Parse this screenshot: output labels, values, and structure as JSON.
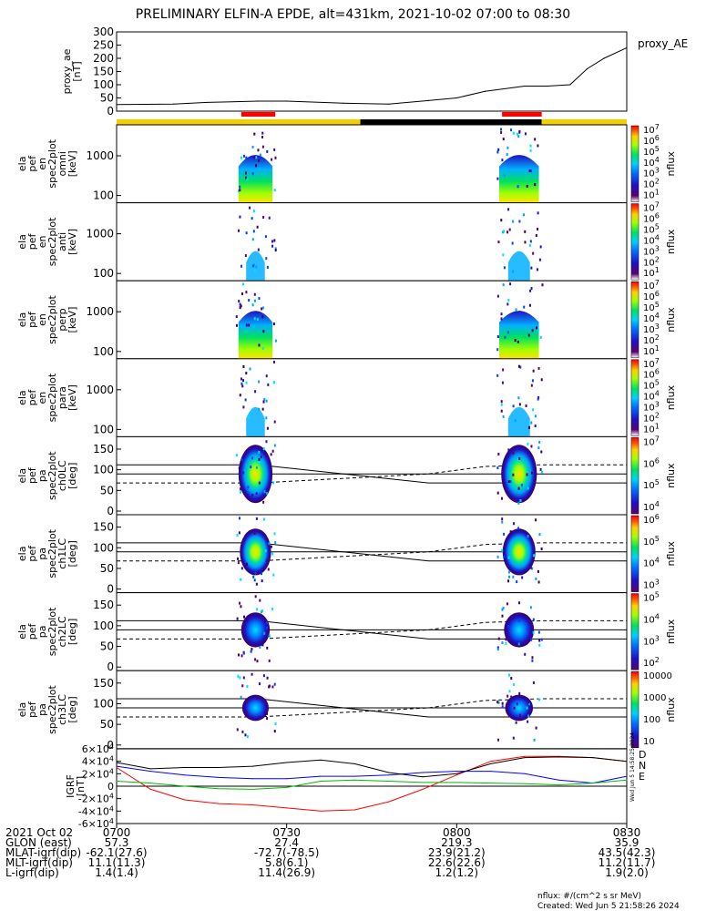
{
  "title": "PRELIMINARY ELFIN-A EPDE, alt=431km, 2021-10-02 07:00 to 08:30",
  "chart_data": [
    {
      "type": "line",
      "name": "proxy_ae",
      "ylabel_lines": [
        "proxy_ae",
        "[nT]"
      ],
      "legend": "proxy_AE",
      "ylim": [
        0,
        300
      ],
      "yticks": [
        "0",
        "50",
        "100",
        "150",
        "200",
        "250",
        "300"
      ],
      "x": [
        700,
        710,
        716,
        725,
        730,
        740,
        748,
        755,
        800,
        805,
        812,
        816,
        820,
        823,
        826,
        830
      ],
      "x_unit": "HHMM (2021-10-02 UT)",
      "values": [
        25,
        27,
        33,
        38,
        38,
        30,
        27,
        40,
        50,
        75,
        95,
        95,
        100,
        160,
        200,
        240
      ]
    },
    {
      "type": "bar",
      "name": "state_bar",
      "segments": [
        {
          "from": 700,
          "to": 743,
          "color": "#f5d000"
        },
        {
          "from": 743,
          "to": 815,
          "color": "#000000"
        },
        {
          "from": 815,
          "to": 830,
          "color": "#f5d000"
        }
      ],
      "science_intervals": [
        {
          "from": 722,
          "to": 728,
          "color": "#ff0000"
        },
        {
          "from": 808,
          "to": 815,
          "color": "#ff0000"
        }
      ]
    },
    {
      "type": "heatmap",
      "panels": [
        {
          "id": "en-omni",
          "ylabel_lines": [
            "ela",
            "pef",
            "en",
            "spec2plot",
            "omni",
            "[keV]"
          ],
          "yticks": [
            "100",
            "1000"
          ],
          "log": true,
          "cbar_ticks": [
            "10^7",
            "10^6",
            "10^5",
            "10^4",
            "10^3",
            "10^2",
            "10^1"
          ],
          "cbar_label": "nflux"
        },
        {
          "id": "en-anti",
          "ylabel_lines": [
            "ela",
            "pef",
            "en",
            "spec2plot",
            "anti",
            "[keV]"
          ],
          "yticks": [
            "100",
            "1000"
          ],
          "log": true,
          "cbar_ticks": [
            "10^7",
            "10^6",
            "10^5",
            "10^4",
            "10^3",
            "10^2",
            "10^1"
          ],
          "cbar_label": "nflux"
        },
        {
          "id": "en-perp",
          "ylabel_lines": [
            "ela",
            "pef",
            "en",
            "spec2plot",
            "perp",
            "[keV]"
          ],
          "yticks": [
            "100",
            "1000"
          ],
          "log": true,
          "cbar_ticks": [
            "10^7",
            "10^6",
            "10^5",
            "10^4",
            "10^3",
            "10^2",
            "10^1"
          ],
          "cbar_label": "nflux"
        },
        {
          "id": "en-para",
          "ylabel_lines": [
            "ela",
            "pef",
            "en",
            "spec2plot",
            "para",
            "[keV]"
          ],
          "yticks": [
            "100",
            "1000"
          ],
          "log": true,
          "cbar_ticks": [
            "10^7",
            "10^6",
            "10^5",
            "10^4",
            "10^3",
            "10^2",
            "10^1"
          ],
          "cbar_label": "nflux"
        },
        {
          "id": "pa-ch0",
          "ylabel_lines": [
            "ela",
            "pef",
            "pa",
            "spec2plot",
            "ch0LC",
            "[deg]"
          ],
          "yticks": [
            "0",
            "50",
            "100",
            "150"
          ],
          "cbar_ticks": [
            "10^7",
            "10^6",
            "10^5",
            "10^4"
          ],
          "cbar_label": "nflux"
        },
        {
          "id": "pa-ch1",
          "ylabel_lines": [
            "ela",
            "pef",
            "pa",
            "spec2plot",
            "ch1LC",
            "[deg]"
          ],
          "yticks": [
            "0",
            "50",
            "100",
            "150"
          ],
          "cbar_ticks": [
            "10^6",
            "10^5",
            "10^4",
            "10^3"
          ],
          "cbar_label": "nflux"
        },
        {
          "id": "pa-ch2",
          "ylabel_lines": [
            "ela",
            "pef",
            "pa",
            "spec2plot",
            "ch2LC",
            "[deg]"
          ],
          "yticks": [
            "0",
            "50",
            "100",
            "150"
          ],
          "cbar_ticks": [
            "10^5",
            "10^4",
            "10^3",
            "10^2"
          ],
          "cbar_label": "nflux"
        },
        {
          "id": "pa-ch3",
          "ylabel_lines": [
            "ela",
            "pef",
            "pa",
            "spec2plot",
            "ch3LC",
            "[deg]"
          ],
          "yticks": [
            "0",
            "50",
            "100",
            "150"
          ],
          "cbar_ticks": [
            "10000",
            "1000",
            "100",
            "10"
          ],
          "cbar_label": "nflux"
        }
      ]
    },
    {
      "type": "line",
      "name": "igrf",
      "ylabel_lines": [
        "IGRF",
        "[nT]"
      ],
      "ylim": [
        -60000,
        60000
      ],
      "yticks": [
        "-6×10^4",
        "-4×10^4",
        "-2×10^4",
        "0",
        "2×10^4",
        "4×10^4",
        "6×10^4"
      ],
      "x": [
        700,
        706,
        712,
        718,
        724,
        730,
        736,
        742,
        748,
        754,
        800,
        806,
        812,
        818,
        824,
        830
      ],
      "series": [
        {
          "name": "D",
          "color": "#ff0000",
          "values": [
            30000,
            -5000,
            -22000,
            -28000,
            -30000,
            -35000,
            -40000,
            -38000,
            -25000,
            -5000,
            18000,
            40000,
            48000,
            48000,
            46000,
            40000
          ]
        },
        {
          "name": "N",
          "color": "#0000ff",
          "values": [
            32000,
            24000,
            18000,
            14000,
            12000,
            12000,
            16000,
            16000,
            18000,
            22000,
            24000,
            24000,
            20000,
            10000,
            5000,
            16000
          ]
        },
        {
          "name": "E",
          "color": "#00bb00",
          "values": [
            8000,
            5000,
            0,
            -4000,
            -5000,
            -2000,
            8000,
            10000,
            8000,
            6000,
            6000,
            5000,
            4000,
            2000,
            5000,
            10000
          ]
        },
        {
          "name": "",
          "color": "#000000",
          "values": [
            38000,
            28000,
            30000,
            30000,
            32000,
            38000,
            42000,
            36000,
            22000,
            15000,
            20000,
            36000,
            46000,
            47000,
            46000,
            40000
          ]
        }
      ],
      "side_text": "Wed Jun  5 14:58:25 2024"
    }
  ],
  "time_axis": {
    "labels": [
      "0700",
      "0730",
      "0800",
      "0830"
    ],
    "rows": [
      {
        "label": "2021 Oct 02",
        "values": [
          "0700",
          "0730",
          "0800",
          "0830"
        ]
      },
      {
        "label": "GLON (east)",
        "values": [
          "57.3",
          "27.4",
          "219.3",
          "35.9"
        ]
      },
      {
        "label": "MLAT-igrf(dip)",
        "values": [
          "-62.1(27.6)",
          "-72.7(-78.5)",
          "23.9(21.2)",
          "43.5(42.3)"
        ]
      },
      {
        "label": "MLT-igrf(dip)",
        "values": [
          "11.1(11.3)",
          "5.8(6.1)",
          "22.6(22.6)",
          "11.2(11.7)"
        ]
      },
      {
        "label": "L-igrf(dip)",
        "values": [
          "1.4(1.4)",
          "11.4(26.9)",
          "1.2(1.2)",
          "1.9(2.0)"
        ]
      }
    ]
  },
  "footer": {
    "units": "nflux: #/(cm^2 s sr MeV)",
    "created": "Created: Wed Jun  5 21:58:26 2024"
  },
  "colors": {
    "yellow": "#f5d000",
    "red": "#ff0000",
    "black": "#000000"
  }
}
